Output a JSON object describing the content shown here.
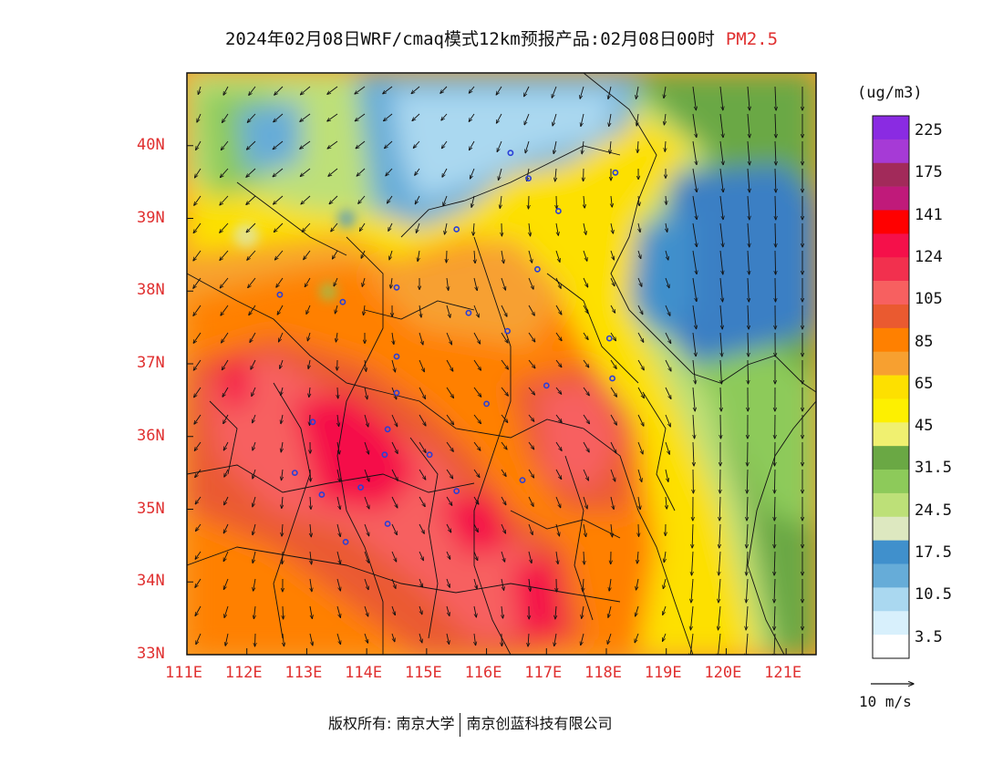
{
  "title": {
    "main": "2024年02月08日WRF/cmaq模式12km预报产品:02月08日00时",
    "pollutant": "PM2.5"
  },
  "map": {
    "lon_min": 111,
    "lon_max": 121.5,
    "lat_min": 33,
    "lat_max": 41,
    "lat_labels": [
      "33N",
      "34N",
      "35N",
      "36N",
      "37N",
      "38N",
      "39N",
      "40N"
    ],
    "lat_values": [
      33,
      34,
      35,
      36,
      37,
      38,
      39,
      40
    ],
    "lon_labels": [
      "111E",
      "112E",
      "113E",
      "114E",
      "115E",
      "116E",
      "117E",
      "118E",
      "119E",
      "120E",
      "121E"
    ],
    "lon_values": [
      111,
      112,
      113,
      114,
      115,
      116,
      117,
      118,
      119,
      120,
      121
    ],
    "cities": [
      [
        116.4,
        39.9
      ],
      [
        116.7,
        39.55
      ],
      [
        117.2,
        39.1
      ],
      [
        115.5,
        38.85
      ],
      [
        116.85,
        38.3
      ],
      [
        115.7,
        37.7
      ],
      [
        116.35,
        37.45
      ],
      [
        114.5,
        38.05
      ],
      [
        113.6,
        37.85
      ],
      [
        112.55,
        37.95
      ],
      [
        114.5,
        37.1
      ],
      [
        114.5,
        36.6
      ],
      [
        116.0,
        36.45
      ],
      [
        117.0,
        36.7
      ],
      [
        118.05,
        37.35
      ],
      [
        118.1,
        36.8
      ],
      [
        114.35,
        36.1
      ],
      [
        113.1,
        36.2
      ],
      [
        114.3,
        35.75
      ],
      [
        115.05,
        35.75
      ],
      [
        115.5,
        35.25
      ],
      [
        116.6,
        35.4
      ],
      [
        113.25,
        35.2
      ],
      [
        113.9,
        35.3
      ],
      [
        112.8,
        35.5
      ],
      [
        114.35,
        34.8
      ],
      [
        113.65,
        34.55
      ],
      [
        118.15,
        39.63
      ]
    ],
    "colors": {
      "sea_blue": "#3a7fc4",
      "boundary": "#111111",
      "city_marker": "#2a3fd8"
    }
  },
  "legend": {
    "unit": "(ug/m3)",
    "colors": [
      "#8a2be2",
      "#a63ad6",
      "#a22a5a",
      "#c01a7a",
      "#ff0000",
      "#f5104a",
      "#f2304e",
      "#f76060",
      "#ea5a30",
      "#ff8000",
      "#f7a030",
      "#fde000",
      "#fdf000",
      "#f0f070",
      "#6aa844",
      "#8dca5a",
      "#bde078",
      "#dde8c0",
      "#4090cc",
      "#66acd8",
      "#aad8f0",
      "#d8f0fc",
      "#ffffff"
    ],
    "labels": [
      "225",
      "175",
      "141",
      "124",
      "105",
      "85",
      "65",
      "45",
      "31.5",
      "24.5",
      "17.5",
      "10.5",
      "3.5"
    ]
  },
  "wind_ref": {
    "label": "10 m/s"
  },
  "footer": {
    "left": "版权所有: 南京大学",
    "right": "南京创蓝科技有限公司"
  }
}
